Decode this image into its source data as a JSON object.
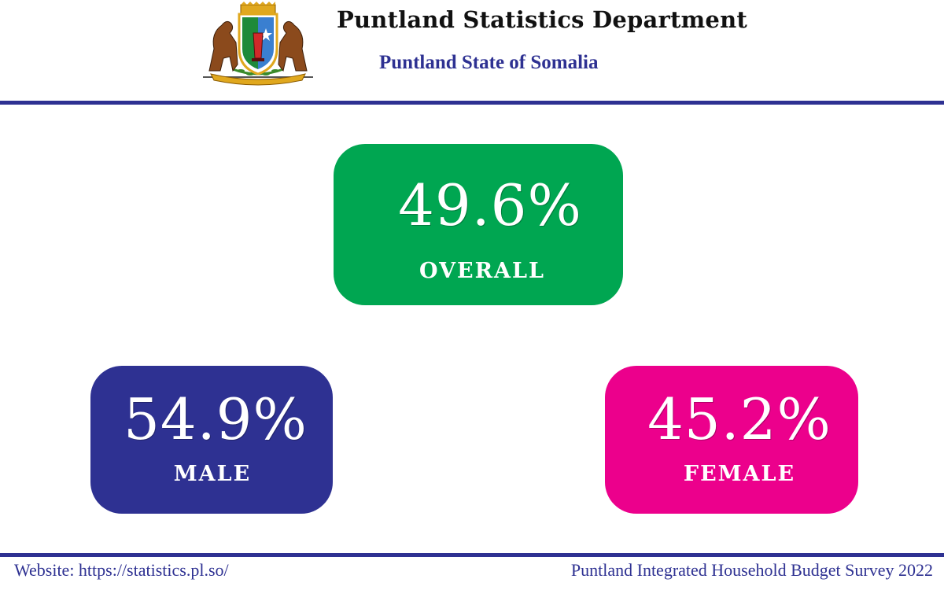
{
  "header": {
    "organization": "Puntland Statistics Department",
    "state": "Puntland State of Somalia",
    "emblem_icon": "puntland-coat-of-arms"
  },
  "stats": {
    "overall": {
      "value": "49.6%",
      "label": "OVERALL",
      "color": "#00a651"
    },
    "male": {
      "value": "54.9%",
      "label": "MALE",
      "color": "#2e3192"
    },
    "female": {
      "value": "45.2%",
      "label": "FEMALE",
      "color": "#ec008c"
    }
  },
  "footer": {
    "website": "Website: https://statistics.pl.so/",
    "survey": "Puntland Integrated Household Budget Survey 2022"
  },
  "colors": {
    "rule": "#2e3192",
    "accent_text": "#2e3192"
  }
}
